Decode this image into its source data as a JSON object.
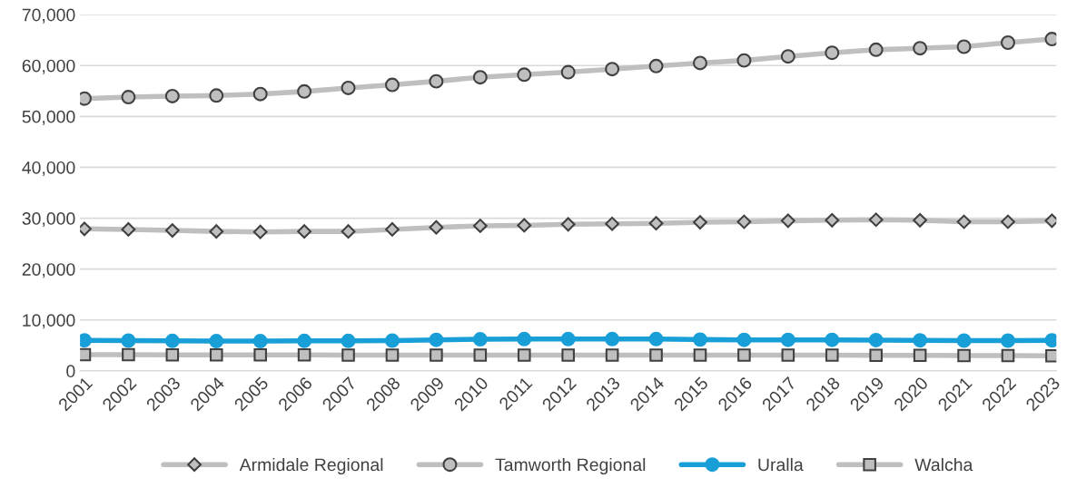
{
  "chart_data": {
    "type": "line",
    "categories": [
      "2001",
      "2002",
      "2003",
      "2004",
      "2005",
      "2006",
      "2007",
      "2008",
      "2009",
      "2010",
      "2011",
      "2012",
      "2013",
      "2014",
      "2015",
      "2016",
      "2017",
      "2018",
      "2019",
      "2020",
      "2021",
      "2022",
      "2023"
    ],
    "series": [
      {
        "name": "Armidale Regional",
        "color": "#bfbfbf",
        "marker": "diamond",
        "values": [
          27900,
          27800,
          27600,
          27400,
          27300,
          27400,
          27400,
          27800,
          28200,
          28500,
          28600,
          28800,
          28900,
          29000,
          29200,
          29300,
          29500,
          29600,
          29700,
          29600,
          29300,
          29300,
          29500
        ]
      },
      {
        "name": "Tamworth Regional",
        "color": "#bfbfbf",
        "marker": "circle",
        "values": [
          53500,
          53800,
          54000,
          54100,
          54400,
          54900,
          55600,
          56200,
          56900,
          57700,
          58200,
          58700,
          59300,
          59900,
          60500,
          61000,
          61800,
          62500,
          63100,
          63400,
          63700,
          64500,
          65200
        ]
      },
      {
        "name": "Uralla",
        "color": "#199fd7",
        "marker": "circle",
        "values": [
          6000,
          5950,
          5900,
          5850,
          5850,
          5900,
          5900,
          5950,
          6100,
          6200,
          6250,
          6250,
          6250,
          6250,
          6150,
          6100,
          6100,
          6100,
          6050,
          6000,
          5950,
          5950,
          6000
        ]
      },
      {
        "name": "Walcha",
        "color": "#bfbfbf",
        "marker": "square",
        "values": [
          3200,
          3200,
          3150,
          3150,
          3150,
          3150,
          3100,
          3100,
          3100,
          3100,
          3100,
          3100,
          3100,
          3100,
          3100,
          3100,
          3100,
          3100,
          3050,
          3050,
          3000,
          3000,
          2950
        ]
      }
    ],
    "ylim": [
      0,
      70000
    ],
    "yticks": [
      {
        "value": 0,
        "label": "0"
      },
      {
        "value": 10000,
        "label": "10,000"
      },
      {
        "value": 20000,
        "label": "20,000"
      },
      {
        "value": 30000,
        "label": "30,000"
      },
      {
        "value": 40000,
        "label": "40,000"
      },
      {
        "value": 50000,
        "label": "50,000"
      },
      {
        "value": 60000,
        "label": "60,000"
      },
      {
        "value": 70000,
        "label": "70,000"
      }
    ],
    "grid": "y",
    "legend": "bottom",
    "line_style": "solid"
  }
}
